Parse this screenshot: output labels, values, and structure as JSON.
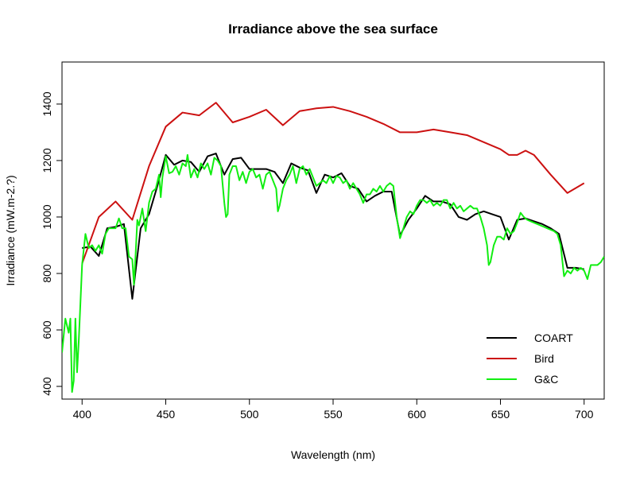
{
  "chart_data": {
    "type": "line",
    "title": "Irradiance above the sea surface",
    "x_label": "Wavelength (nm)",
    "y_label": "Irradiance (mW.m-2.?)",
    "xlim": [
      388,
      712
    ],
    "ylim": [
      355,
      1549
    ],
    "xticks": [
      400,
      450,
      500,
      550,
      600,
      650,
      700
    ],
    "yticks": [
      400,
      600,
      800,
      1000,
      1200,
      1400
    ],
    "grid": false,
    "legend": "bottomright",
    "series": [
      {
        "name": "COART",
        "color": "#000000",
        "x": [
          400,
          405,
          410,
          415,
          420,
          425,
          430,
          435,
          440,
          445,
          450,
          455,
          460,
          465,
          470,
          475,
          480,
          485,
          490,
          495,
          500,
          505,
          510,
          515,
          520,
          525,
          530,
          535,
          540,
          545,
          550,
          555,
          560,
          565,
          570,
          575,
          580,
          585,
          590,
          595,
          600,
          605,
          610,
          615,
          620,
          625,
          630,
          635,
          640,
          645,
          650,
          655,
          660,
          665,
          670,
          675,
          680,
          685,
          690,
          695,
          700
        ],
        "values": [
          890,
          895,
          862,
          960,
          965,
          975,
          710,
          960,
          1010,
          1110,
          1220,
          1185,
          1200,
          1195,
          1160,
          1215,
          1225,
          1150,
          1205,
          1210,
          1170,
          1170,
          1170,
          1160,
          1120,
          1190,
          1175,
          1165,
          1085,
          1150,
          1140,
          1155,
          1110,
          1100,
          1055,
          1075,
          1090,
          1090,
          935,
          990,
          1030,
          1075,
          1055,
          1055,
          1045,
          1000,
          990,
          1010,
          1020,
          1010,
          1000,
          920,
          990,
          995,
          985,
          975,
          960,
          940,
          820,
          820,
          815
        ]
      },
      {
        "name": "Bird",
        "color": "#cc1111",
        "x": [
          400,
          410,
          420,
          430,
          440,
          450,
          460,
          470,
          480,
          490,
          500,
          510,
          520,
          530,
          540,
          550,
          560,
          570,
          580,
          590,
          600,
          610,
          620,
          630,
          640,
          650,
          655,
          660,
          665,
          670,
          680,
          690,
          700
        ],
        "values": [
          835,
          1000,
          1055,
          990,
          1180,
          1320,
          1370,
          1360,
          1405,
          1335,
          1355,
          1380,
          1325,
          1375,
          1385,
          1390,
          1375,
          1355,
          1330,
          1300,
          1300,
          1310,
          1300,
          1290,
          1265,
          1240,
          1220,
          1220,
          1235,
          1220,
          1150,
          1085,
          1120
        ]
      },
      {
        "name": "G&C",
        "color": "#11ee11",
        "x": [
          388,
          390,
          392,
          393,
          394,
          395,
          396,
          397,
          398,
          400,
          402,
          404,
          406,
          408,
          410,
          412,
          414,
          416,
          418,
          420,
          422,
          424,
          426,
          428,
          430,
          431,
          432,
          433,
          434,
          436,
          438,
          440,
          442,
          444,
          446,
          447,
          448,
          450,
          452,
          454,
          456,
          458,
          460,
          462,
          463,
          465,
          467,
          469,
          471,
          473,
          475,
          477,
          479,
          481,
          483,
          485,
          486,
          487,
          488,
          490,
          492,
          494,
          496,
          498,
          500,
          502,
          504,
          506,
          508,
          510,
          512,
          514,
          516,
          517,
          518,
          520,
          522,
          524,
          526,
          528,
          530,
          532,
          534,
          536,
          538,
          540,
          542,
          544,
          546,
          548,
          550,
          552,
          554,
          556,
          558,
          560,
          562,
          564,
          566,
          568,
          570,
          572,
          574,
          576,
          578,
          580,
          582,
          584,
          586,
          588,
          590,
          592,
          594,
          596,
          598,
          600,
          602,
          604,
          606,
          608,
          610,
          612,
          614,
          616,
          618,
          620,
          622,
          624,
          626,
          628,
          630,
          632,
          634,
          636,
          638,
          640,
          642,
          643,
          644,
          646,
          648,
          650,
          652,
          654,
          656,
          658,
          660,
          662,
          664,
          666,
          668,
          670,
          672,
          674,
          676,
          678,
          680,
          682,
          684,
          686,
          688,
          690,
          692,
          694,
          696,
          698,
          700,
          702,
          704,
          706,
          708,
          710,
          712
        ],
        "values": [
          520,
          640,
          590,
          640,
          380,
          420,
          640,
          450,
          560,
          830,
          940,
          890,
          900,
          880,
          900,
          870,
          940,
          960,
          960,
          960,
          995,
          960,
          960,
          860,
          850,
          760,
          870,
          990,
          970,
          1030,
          950,
          1050,
          1090,
          1100,
          1150,
          1070,
          1140,
          1215,
          1155,
          1160,
          1180,
          1150,
          1190,
          1180,
          1220,
          1140,
          1170,
          1140,
          1190,
          1170,
          1190,
          1150,
          1210,
          1200,
          1180,
          1050,
          1000,
          1010,
          1150,
          1180,
          1180,
          1130,
          1160,
          1120,
          1160,
          1170,
          1140,
          1150,
          1100,
          1150,
          1160,
          1130,
          1100,
          1020,
          1040,
          1100,
          1130,
          1150,
          1180,
          1120,
          1170,
          1180,
          1150,
          1170,
          1140,
          1110,
          1120,
          1130,
          1120,
          1145,
          1120,
          1145,
          1140,
          1120,
          1130,
          1100,
          1120,
          1100,
          1080,
          1050,
          1080,
          1080,
          1100,
          1090,
          1110,
          1090,
          1110,
          1120,
          1110,
          1000,
          925,
          960,
          1000,
          1020,
          1010,
          1040,
          1060,
          1060,
          1050,
          1060,
          1040,
          1050,
          1040,
          1060,
          1060,
          1030,
          1050,
          1030,
          1040,
          1020,
          1030,
          1040,
          1030,
          1030,
          1000,
          960,
          900,
          830,
          840,
          900,
          930,
          930,
          920,
          960,
          940,
          950,
          980,
          1015,
          1000,
          990,
          985,
          980,
          975,
          970,
          965,
          960,
          955,
          950,
          940,
          900,
          790,
          810,
          800,
          820,
          810,
          820,
          810,
          780,
          830,
          830,
          830,
          840,
          860
        ]
      }
    ]
  }
}
